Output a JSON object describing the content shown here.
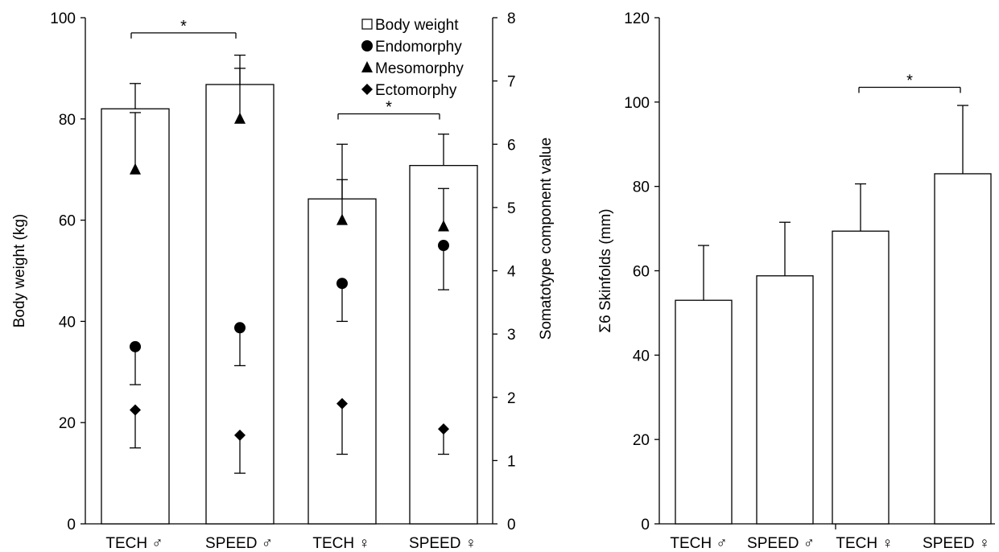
{
  "chart_data": [
    {
      "type": "bar",
      "categories": [
        "TECH ♂",
        "SPEED ♂",
        "TECH ♀",
        "SPEED ♀"
      ],
      "ylabel": "Body weight (kg)",
      "y2label": "Somatotype component value",
      "ylim": [
        0,
        100
      ],
      "y2lim": [
        0,
        8
      ],
      "yticks": [
        "0",
        "20",
        "40",
        "60",
        "80",
        "100"
      ],
      "y2ticks": [
        "0",
        "1",
        "2",
        "3",
        "4",
        "5",
        "6",
        "7",
        "8"
      ],
      "legend_position": "top-right",
      "series": [
        {
          "name": "Body weight",
          "type": "bar",
          "axis": "left",
          "marker": "square-open",
          "values": [
            82,
            86.8,
            64.2,
            70.8
          ],
          "errors": [
            5,
            5.8,
            3.8,
            6.2
          ]
        },
        {
          "name": "Endomorphy",
          "type": "scatter",
          "axis": "right",
          "marker": "circle",
          "values": [
            2.8,
            3.1,
            3.8,
            4.4
          ],
          "errors": [
            0.6,
            0.6,
            0.6,
            0.7
          ]
        },
        {
          "name": "Mesomorphy",
          "type": "scatter",
          "axis": "right",
          "marker": "triangle",
          "values": [
            5.6,
            6.4,
            4.8,
            4.7
          ],
          "errors": [
            0.9,
            0.8,
            1.2,
            0.6
          ]
        },
        {
          "name": "Ectomorphy",
          "type": "scatter",
          "axis": "right",
          "marker": "diamond",
          "values": [
            1.8,
            1.4,
            1.9,
            1.5
          ],
          "errors": [
            0.6,
            0.6,
            0.8,
            0.4
          ]
        }
      ],
      "annotations": [
        {
          "text": "*",
          "from": 0,
          "to": 1,
          "y": 97
        },
        {
          "text": "*",
          "from": 2,
          "to": 3,
          "y": 81
        }
      ]
    },
    {
      "type": "bar",
      "categories": [
        "TECH ♂",
        "SPEED ♂",
        "TECH ♀",
        "SPEED ♀"
      ],
      "ylabel": "Σ6 Skinfolds (mm)",
      "ylim": [
        0,
        120
      ],
      "yticks": [
        "0",
        "20",
        "40",
        "60",
        "80",
        "100",
        "120"
      ],
      "series": [
        {
          "name": "Σ6 Skinfolds",
          "values": [
            53,
            58.8,
            69.4,
            83
          ],
          "errors": [
            13,
            12.7,
            11.2,
            16.2
          ]
        }
      ],
      "annotations": [
        {
          "text": "*",
          "from": 2,
          "to": 3,
          "y": 103.5
        }
      ]
    }
  ]
}
